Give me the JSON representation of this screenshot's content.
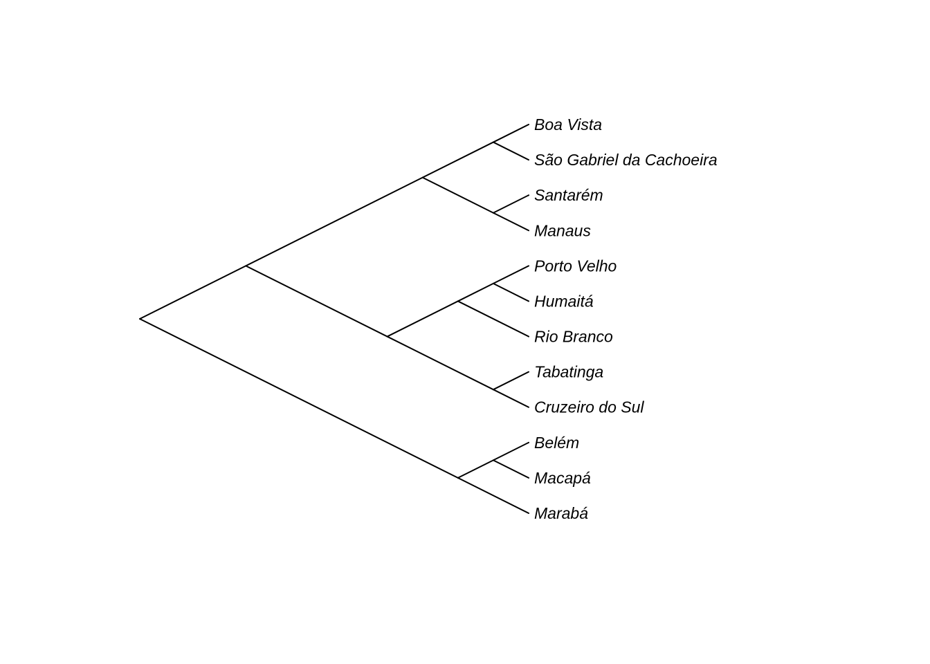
{
  "diagram": {
    "type": "cladogram",
    "tips": [
      "Boa Vista",
      "São Gabriel da Cachoeira",
      "Santarém",
      "Manaus",
      "Porto Velho",
      "Humaitá",
      "Rio Branco",
      "Tabatinga",
      "Cruzeiro do Sul",
      "Belém",
      "Macapá",
      "Marabá"
    ],
    "tree": [
      [
        [
          [
            "Boa Vista",
            "São Gabriel da Cachoeira"
          ],
          [
            "Santarém",
            "Manaus"
          ]
        ],
        [
          [
            [
              "Porto Velho",
              "Humaitá"
            ],
            "Rio Branco"
          ],
          [
            "Tabatinga",
            "Cruzeiro do Sul"
          ]
        ]
      ],
      [
        [
          "Belém",
          "Macapá"
        ],
        "Marabá"
      ]
    ],
    "colors": {
      "branch": "#000000",
      "label": "#000000",
      "background": "#ffffff"
    }
  }
}
